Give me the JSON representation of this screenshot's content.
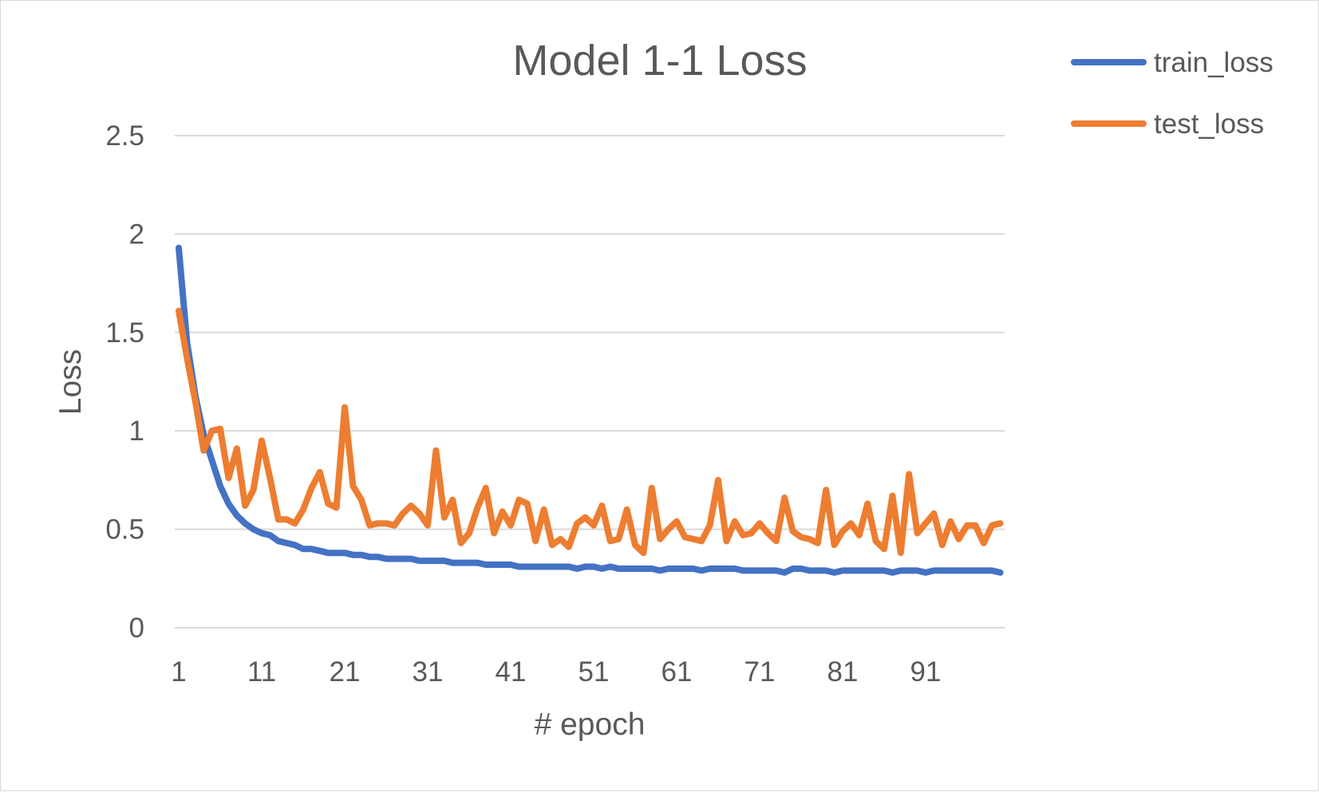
{
  "chart_data": {
    "type": "line",
    "title": "Model 1-1 Loss",
    "xlabel": "# epoch",
    "ylabel": "Loss",
    "ylim": [
      0,
      2.5
    ],
    "y_ticks": [
      "0",
      "0.5",
      "1",
      "1.5",
      "2",
      "2.5"
    ],
    "x_ticks": [
      "1",
      "11",
      "21",
      "31",
      "41",
      "51",
      "61",
      "71",
      "81",
      "91"
    ],
    "grid": true,
    "legend_position": "top-right",
    "x": [
      1,
      2,
      3,
      4,
      5,
      6,
      7,
      8,
      9,
      10,
      11,
      12,
      13,
      14,
      15,
      16,
      17,
      18,
      19,
      20,
      21,
      22,
      23,
      24,
      25,
      26,
      27,
      28,
      29,
      30,
      31,
      32,
      33,
      34,
      35,
      36,
      37,
      38,
      39,
      40,
      41,
      42,
      43,
      44,
      45,
      46,
      47,
      48,
      49,
      50,
      51,
      52,
      53,
      54,
      55,
      56,
      57,
      58,
      59,
      60,
      61,
      62,
      63,
      64,
      65,
      66,
      67,
      68,
      69,
      70,
      71,
      72,
      73,
      74,
      75,
      76,
      77,
      78,
      79,
      80,
      81,
      82,
      83,
      84,
      85,
      86,
      87,
      88,
      89,
      90,
      91,
      92,
      93,
      94,
      95,
      96,
      97,
      98,
      99,
      100
    ],
    "series": [
      {
        "name": "train_loss",
        "color": "#4472c4",
        "values": [
          1.93,
          1.45,
          1.18,
          0.98,
          0.85,
          0.72,
          0.63,
          0.57,
          0.53,
          0.5,
          0.48,
          0.47,
          0.44,
          0.43,
          0.42,
          0.4,
          0.4,
          0.39,
          0.38,
          0.38,
          0.38,
          0.37,
          0.37,
          0.36,
          0.36,
          0.35,
          0.35,
          0.35,
          0.35,
          0.34,
          0.34,
          0.34,
          0.34,
          0.33,
          0.33,
          0.33,
          0.33,
          0.32,
          0.32,
          0.32,
          0.32,
          0.31,
          0.31,
          0.31,
          0.31,
          0.31,
          0.31,
          0.31,
          0.3,
          0.31,
          0.31,
          0.3,
          0.31,
          0.3,
          0.3,
          0.3,
          0.3,
          0.3,
          0.29,
          0.3,
          0.3,
          0.3,
          0.3,
          0.29,
          0.3,
          0.3,
          0.3,
          0.3,
          0.29,
          0.29,
          0.29,
          0.29,
          0.29,
          0.28,
          0.3,
          0.3,
          0.29,
          0.29,
          0.29,
          0.28,
          0.29,
          0.29,
          0.29,
          0.29,
          0.29,
          0.29,
          0.28,
          0.29,
          0.29,
          0.29,
          0.28,
          0.29,
          0.29,
          0.29,
          0.29,
          0.29,
          0.29,
          0.29,
          0.29,
          0.28
        ]
      },
      {
        "name": "test_loss",
        "color": "#ed7d31",
        "values": [
          1.61,
          1.37,
          1.15,
          0.9,
          1.0,
          1.01,
          0.76,
          0.91,
          0.62,
          0.7,
          0.95,
          0.76,
          0.55,
          0.55,
          0.53,
          0.6,
          0.71,
          0.79,
          0.63,
          0.61,
          1.12,
          0.72,
          0.65,
          0.52,
          0.53,
          0.53,
          0.52,
          0.58,
          0.62,
          0.58,
          0.52,
          0.9,
          0.56,
          0.65,
          0.43,
          0.48,
          0.61,
          0.71,
          0.48,
          0.59,
          0.52,
          0.65,
          0.63,
          0.44,
          0.6,
          0.42,
          0.45,
          0.41,
          0.53,
          0.56,
          0.52,
          0.62,
          0.44,
          0.45,
          0.6,
          0.42,
          0.38,
          0.71,
          0.45,
          0.5,
          0.54,
          0.46,
          0.45,
          0.44,
          0.52,
          0.75,
          0.44,
          0.54,
          0.47,
          0.48,
          0.53,
          0.48,
          0.44,
          0.66,
          0.49,
          0.46,
          0.45,
          0.43,
          0.7,
          0.42,
          0.49,
          0.53,
          0.47,
          0.63,
          0.44,
          0.4,
          0.67,
          0.38,
          0.78,
          0.48,
          0.53,
          0.58,
          0.42,
          0.54,
          0.45,
          0.52,
          0.52,
          0.43,
          0.52,
          0.53
        ]
      }
    ]
  }
}
